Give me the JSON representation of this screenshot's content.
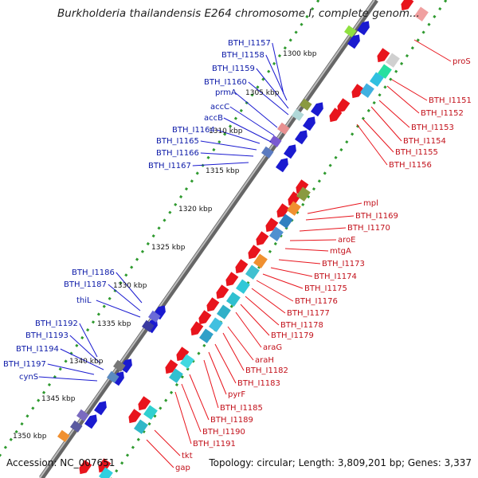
{
  "header": {
    "title": "Burkholderia thailandensis E264 chromosome I, complete genom..."
  },
  "footer": {
    "accession": "Accession: NC_007651",
    "summary": "Topology: circular; Length: 3,809,201 bp; Genes: 3,337"
  },
  "kbp_ticks": [
    {
      "label": "1300 kbp"
    },
    {
      "label": "1305 kbp"
    },
    {
      "label": "1310 kbp"
    },
    {
      "label": "1315 kbp"
    },
    {
      "label": "1320 kbp"
    },
    {
      "label": "1325 kbp"
    },
    {
      "label": "1330 kbp"
    },
    {
      "label": "1335 kbp"
    },
    {
      "label": "1340 kbp"
    },
    {
      "label": "1345 kbp"
    },
    {
      "label": "1350 kbp"
    }
  ],
  "labels_left": [
    "BTH_I1157",
    "BTH_I1158",
    "BTH_I1159",
    "BTH_I1160",
    "prmA",
    "accC",
    "accB",
    "BTH_I1164",
    "BTH_I1165",
    "BTH_I1166",
    "BTH_I1167",
    "BTH_I1186",
    "BTH_I1187",
    "thiL",
    "BTH_I1192",
    "BTH_I1193",
    "BTH_I1194",
    "BTH_I1197",
    "cynS"
  ],
  "labels_right": [
    "proS",
    "BTH_I1151",
    "BTH_I1152",
    "BTH_I1153",
    "BTH_I1154",
    "BTH_I1155",
    "BTH_I1156",
    "mpl",
    "BTH_I1169",
    "BTH_I1170",
    "aroE",
    "mtgA",
    "BTH_I1173",
    "BTH_I1174",
    "BTH_I1175",
    "BTH_I1176",
    "BTH_I1177",
    "BTH_I1178",
    "BTH_I1179",
    "araG",
    "araH",
    "BTH_I1182",
    "BTH_I1183",
    "pyrF",
    "BTH_I1185",
    "BTH_I1189",
    "BTH_I1190",
    "BTH_I1191",
    "tkt",
    "gap"
  ],
  "colors": {
    "forward": "#1a1ad0",
    "reverse": "#e8141c",
    "backbone": "#555555",
    "tick": "#2a8a2a"
  }
}
